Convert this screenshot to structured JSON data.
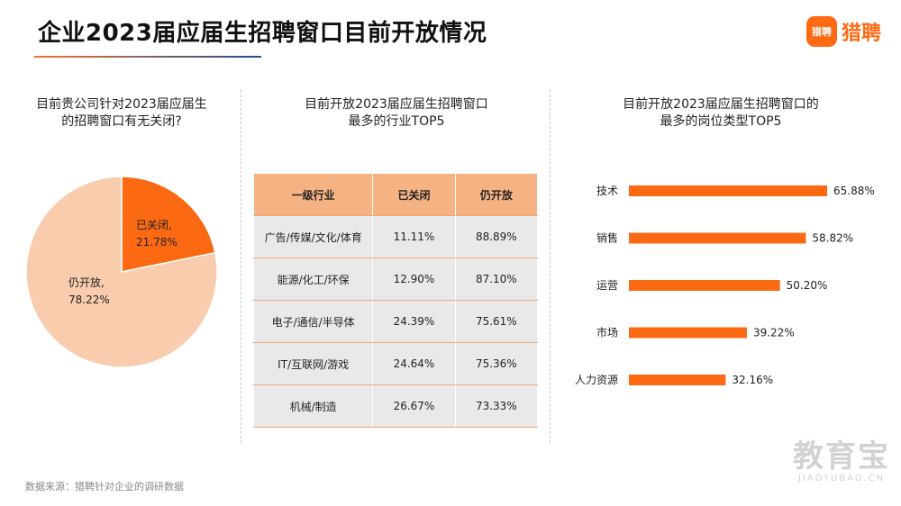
{
  "header": {
    "title": "企业2023届应届生招聘窗口目前开放情况",
    "logo_icon_text": "猎聘",
    "logo_text": "猎聘"
  },
  "pie_section": {
    "title_line1": "目前贵公司针对2023届应届生",
    "title_line2": "的招聘窗口有无关闭?",
    "closed_label": "已关闭,",
    "closed_value": "21.78%",
    "open_label": "仍开放,",
    "open_value": "78.22%"
  },
  "table_section": {
    "title_line1": "目前开放2023届应届生招聘窗口",
    "title_line2": "最多的行业TOP5"
  },
  "bar_section": {
    "title_line1": "目前开放2023届应届生招聘窗口的",
    "title_line2": "最多的岗位类型TOP5"
  },
  "footer": {
    "source": "数据来源：猎聘针对企业的调研数据",
    "watermark_main": "教育宝",
    "watermark_sub": "JIAOYUBAO.CN"
  },
  "colors": {
    "accent": "#ff6a13",
    "pie_closed": "#fb6a12",
    "pie_open": "#f9ccae",
    "table_header": "#f5b384",
    "table_cell": "#e9e9e9",
    "bar": "#fb6a12"
  },
  "chart_data": [
    {
      "type": "pie",
      "title": "目前贵公司针对2023届应届生的招聘窗口有无关闭?",
      "categories": [
        "已关闭",
        "仍开放"
      ],
      "values": [
        21.78,
        78.22
      ],
      "unit": "%"
    },
    {
      "type": "table",
      "title": "目前开放2023届应届生招聘窗口最多的行业TOP5",
      "columns": [
        "一级行业",
        "已关闭",
        "仍开放"
      ],
      "rows": [
        [
          "广告/传媒/文化/体育",
          "11.11%",
          "88.89%"
        ],
        [
          "能源/化工/环保",
          "12.90%",
          "87.10%"
        ],
        [
          "电子/通信/半导体",
          "24.39%",
          "75.61%"
        ],
        [
          "IT/互联网/游戏",
          "24.64%",
          "75.36%"
        ],
        [
          "机械/制造",
          "26.67%",
          "73.33%"
        ]
      ]
    },
    {
      "type": "bar",
      "orientation": "horizontal",
      "title": "目前开放2023届应届生招聘窗口的最多的岗位类型TOP5",
      "categories": [
        "技术",
        "销售",
        "运营",
        "市场",
        "人力资源"
      ],
      "values": [
        65.88,
        58.82,
        50.2,
        39.22,
        32.16
      ],
      "labels": [
        "65.88%",
        "58.82%",
        "50.20%",
        "39.22%",
        "32.16%"
      ],
      "unit": "%"
    }
  ]
}
